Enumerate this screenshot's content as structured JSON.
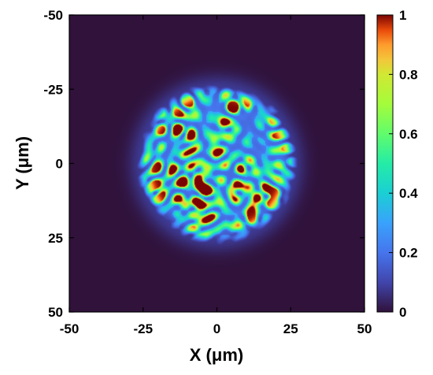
{
  "chart_data": {
    "type": "heatmap",
    "title": "",
    "xlabel": "X (μm)",
    "ylabel": "Y (μm)",
    "xlim": [
      -50,
      50
    ],
    "ylim": [
      -50,
      50
    ],
    "y_direction": "down",
    "x_ticks": [
      "-50",
      "-25",
      "0",
      "25",
      "50"
    ],
    "y_ticks": [
      "-50",
      "-25",
      "0",
      "25",
      "50"
    ],
    "colorbar": {
      "range": [
        0,
        1
      ],
      "ticks": [
        "0",
        "0.2",
        "0.4",
        "0.6",
        "0.8",
        "1"
      ],
      "colormap": "turbo"
    },
    "pattern": {
      "shape": "circular speckle",
      "center": [
        0,
        0
      ],
      "radius": 25,
      "background_value": 0
    }
  },
  "colors": {
    "background": "#ffffff",
    "plot_background": "#30123b"
  }
}
